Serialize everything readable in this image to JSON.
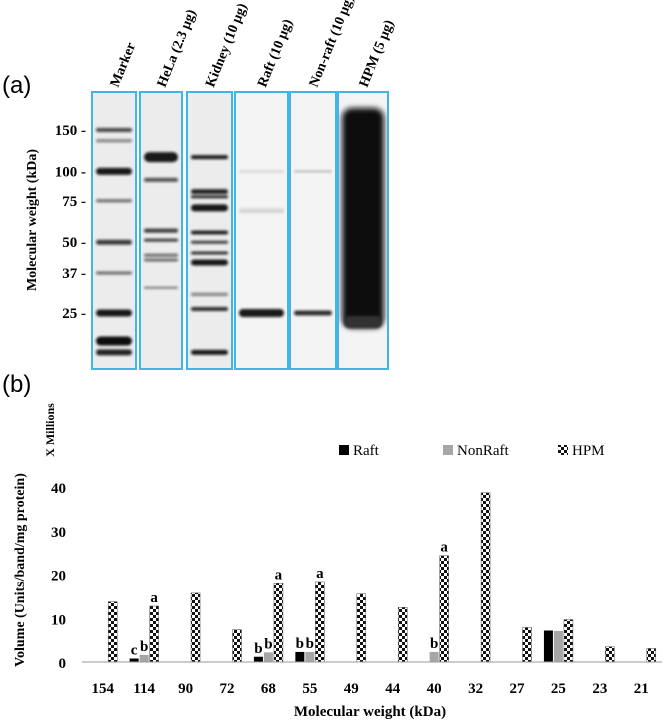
{
  "panel_a": {
    "label": "(a)",
    "ylabel": "Molecular weight (kDa)",
    "lanes": [
      {
        "label": "Marker"
      },
      {
        "label": "HeLa (2.3 µg)"
      },
      {
        "label": "Kidney (10 µg)"
      },
      {
        "label": "Raft (10 µg)"
      },
      {
        "label": "Non-raft (10 µg)"
      },
      {
        "label": "HPM (5 µg)"
      }
    ],
    "markers": [
      {
        "label": "150 -",
        "kda": 150
      },
      {
        "label": "100 -",
        "kda": 100
      },
      {
        "label": "75 -",
        "kda": 75
      },
      {
        "label": "50 -",
        "kda": 50
      },
      {
        "label": "37 -",
        "kda": 37
      },
      {
        "label": "25 -",
        "kda": 25
      }
    ],
    "frame_color": "#3fb6e3"
  },
  "panel_b": {
    "label": "(b)"
  },
  "chart_data": {
    "type": "bar",
    "multiplier_label": "X Millions",
    "xlabel": "Molecular weight (kDa)",
    "ylabel": "Volume (Units/band/mg protein)",
    "ylim": [
      0,
      40
    ],
    "yticks": [
      "0",
      "10",
      "20",
      "30",
      "40"
    ],
    "categories": [
      "154",
      "114",
      "90",
      "72",
      "68",
      "55",
      "49",
      "44",
      "40",
      "32",
      "27",
      "25",
      "23",
      "21"
    ],
    "legend_position": "top-right",
    "series": [
      {
        "name": "Raft",
        "color": "#000000",
        "pattern": "solid",
        "values": [
          0,
          0.8,
          0,
          0,
          1.2,
          2.3,
          0,
          0,
          0,
          0,
          0,
          7.2,
          0,
          0
        ]
      },
      {
        "name": "NonRaft",
        "color": "#a6a6a6",
        "pattern": "solid",
        "values": [
          0,
          1.6,
          0,
          0,
          2.2,
          2.3,
          0,
          0,
          2.3,
          0,
          0,
          7.1,
          0,
          0
        ]
      },
      {
        "name": "HPM",
        "color": "#000000",
        "pattern": "checker",
        "values": [
          13.8,
          12.8,
          15.8,
          7.4,
          18.0,
          18.3,
          15.6,
          12.5,
          24.3,
          38.7,
          7.9,
          9.7,
          3.5,
          3.1
        ]
      }
    ],
    "annotations": [
      {
        "text": "c",
        "category": "114",
        "series": "Raft"
      },
      {
        "text": "b",
        "category": "114",
        "series": "NonRaft"
      },
      {
        "text": "a",
        "category": "114",
        "series": "HPM"
      },
      {
        "text": "b",
        "category": "68",
        "series": "Raft"
      },
      {
        "text": "b",
        "category": "68",
        "series": "NonRaft"
      },
      {
        "text": "a",
        "category": "68",
        "series": "HPM"
      },
      {
        "text": "b",
        "category": "55",
        "series": "Raft"
      },
      {
        "text": "b",
        "category": "55",
        "series": "NonRaft"
      },
      {
        "text": "a",
        "category": "55",
        "series": "HPM"
      },
      {
        "text": "b",
        "category": "40",
        "series": "NonRaft"
      },
      {
        "text": "a",
        "category": "40",
        "series": "HPM"
      }
    ]
  }
}
